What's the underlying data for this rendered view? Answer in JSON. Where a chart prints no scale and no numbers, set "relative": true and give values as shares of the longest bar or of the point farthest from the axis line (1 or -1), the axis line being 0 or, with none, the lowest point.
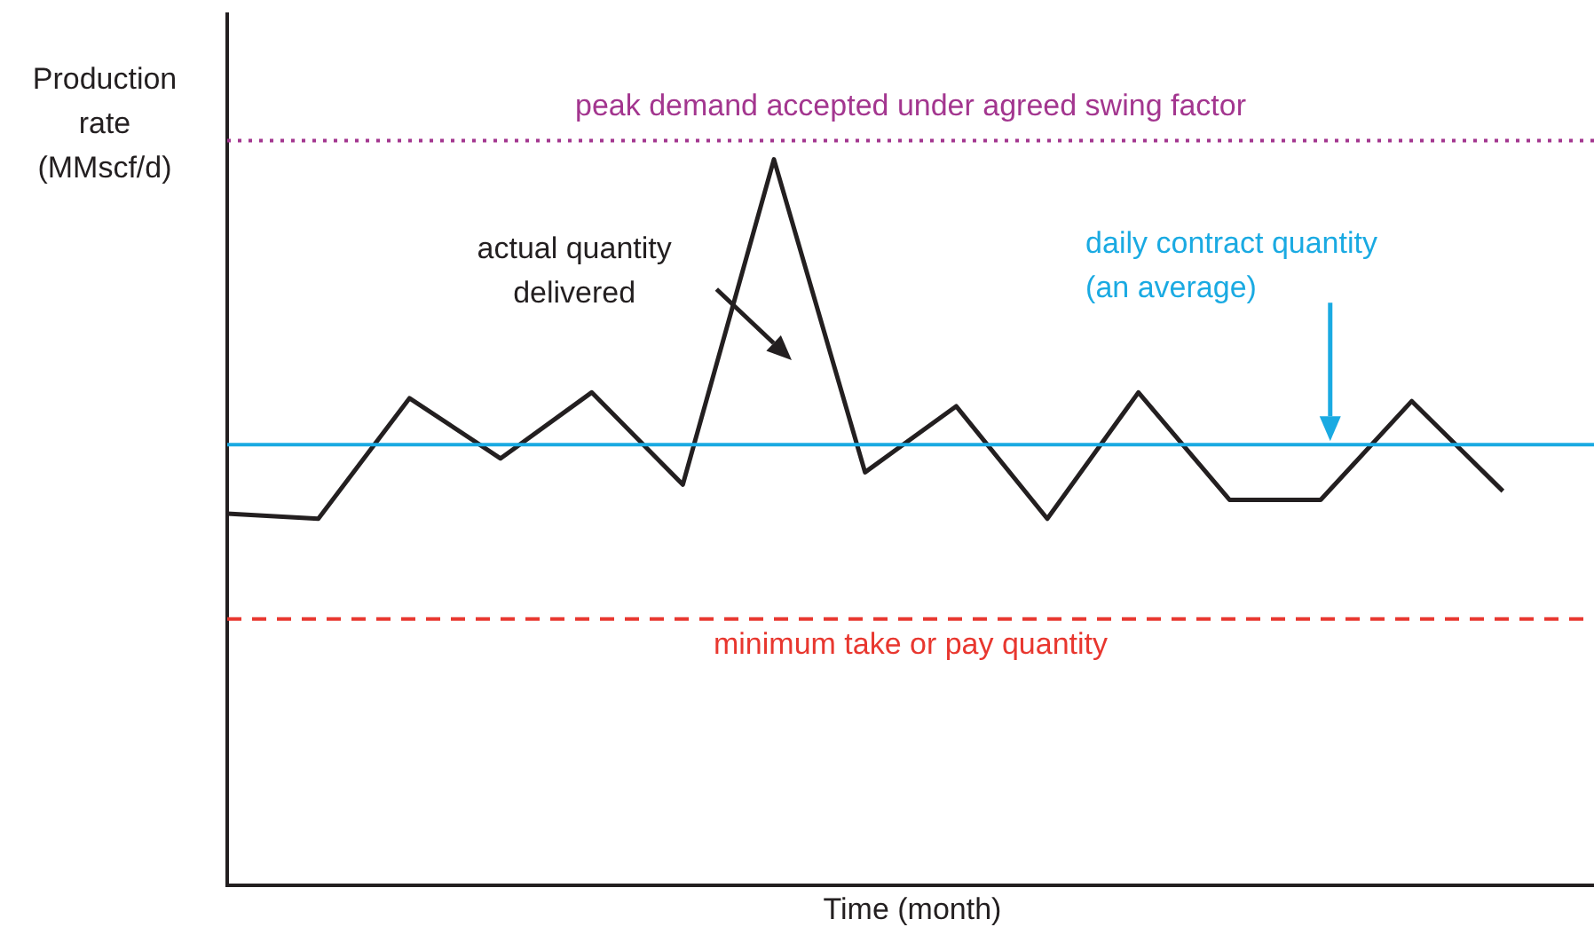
{
  "chart_data": {
    "type": "line",
    "relative": true,
    "xlabel": "Time (month)",
    "ylabel": "Production rate (MMscf/d)",
    "categories": [
      null,
      null,
      null,
      null,
      null,
      null,
      null,
      null,
      null,
      null,
      null,
      null,
      null,
      null,
      null,
      null
    ],
    "marker": "none",
    "line_style": "solid",
    "series": [
      {
        "color": "#231f20",
        "values": [
          0.512,
          0.505,
          0.671,
          0.588,
          0.679,
          0.552,
          1,
          0.569,
          0.66,
          0.505,
          0.679,
          0.531,
          0.531,
          0.667,
          0.543,
          null
        ]
      }
    ],
    "ref_lines": [
      {
        "axis": "y",
        "value": 1.026,
        "label": "peak demand accepted under agreed swing factor",
        "color": "#a3368f",
        "line_style": "dotted"
      },
      {
        "axis": "y",
        "value": 0.607,
        "label": "daily contract quantity (an average)",
        "color": "#1aaae2",
        "line_style": "solid"
      },
      {
        "axis": "y",
        "value": 0.367,
        "label": "minimum take or pay quantity",
        "color": "#e8372f",
        "line_style": "dashed"
      }
    ],
    "annotations": [
      "actual quantity delivered"
    ]
  }
}
